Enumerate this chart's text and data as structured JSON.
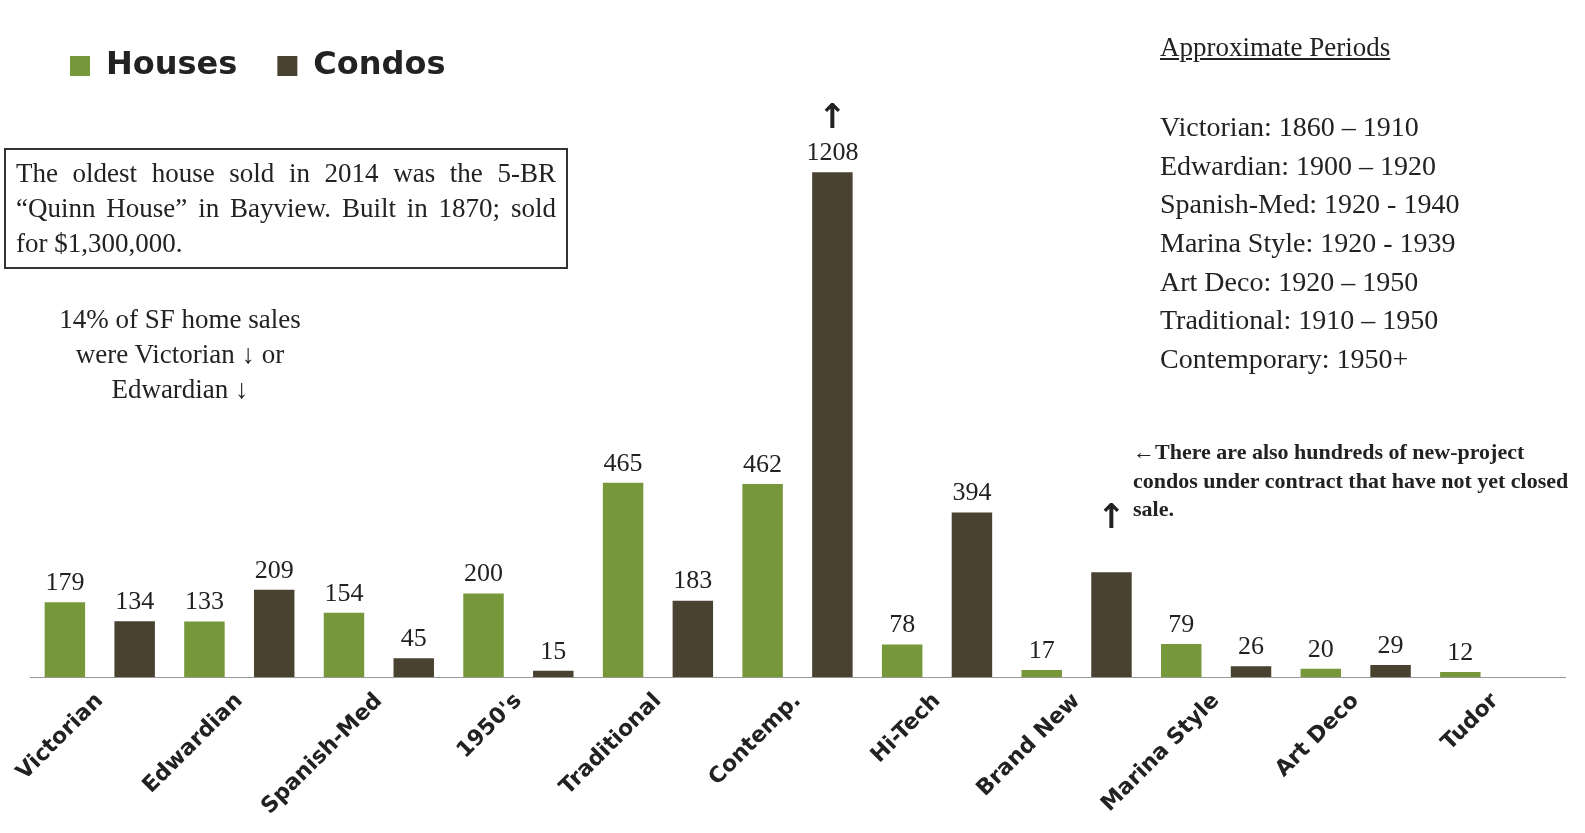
{
  "chart_data": {
    "type": "bar",
    "categories": [
      "Victorian",
      "Edwardian",
      "Spanish-Med",
      "1950's",
      "Traditional",
      "Contemp.",
      "Hi-Tech",
      "Brand New",
      "Marina Style",
      "Art Deco",
      "Tudor"
    ],
    "series": [
      {
        "name": "Houses",
        "color": "#76983a",
        "values": [
          179,
          133,
          154,
          200,
          465,
          462,
          78,
          17,
          79,
          20,
          12
        ],
        "value_labels": [
          "179",
          "133",
          "154",
          "200",
          "465",
          "462",
          "78",
          "17",
          "79",
          "20",
          "12"
        ]
      },
      {
        "name": "Condos",
        "color": "#4a4230",
        "values": [
          134,
          209,
          45,
          15,
          183,
          1208,
          394,
          251,
          26,
          29,
          null
        ],
        "value_labels": [
          "134",
          "209",
          "45",
          "15",
          "183",
          "1208",
          "394",
          null,
          "26",
          "29",
          null
        ]
      }
    ],
    "legend": "top left",
    "grid": false,
    "annotations": [
      "The oldest house sold in 2014 was the 5-BR “Quinn House” in Bayview. Built in 1870; sold for $1,300,000.",
      "14% of SF home sales were Victorian ↓ or Edwardian ↓",
      "Approximate Periods",
      "Victorian: 1860 – 1910\nEdwardian: 1900 – 1920\nSpanish-Med: 1920 - 1940\nMarina Style: 1920 - 1939\nArt Deco: 1920 – 1950\nTraditional: 1910 – 1950\nContemporary: 1950+",
      "←There are also hundreds of new-project condos under contract that have not yet closed sale.",
      "↑",
      "↑"
    ]
  }
}
